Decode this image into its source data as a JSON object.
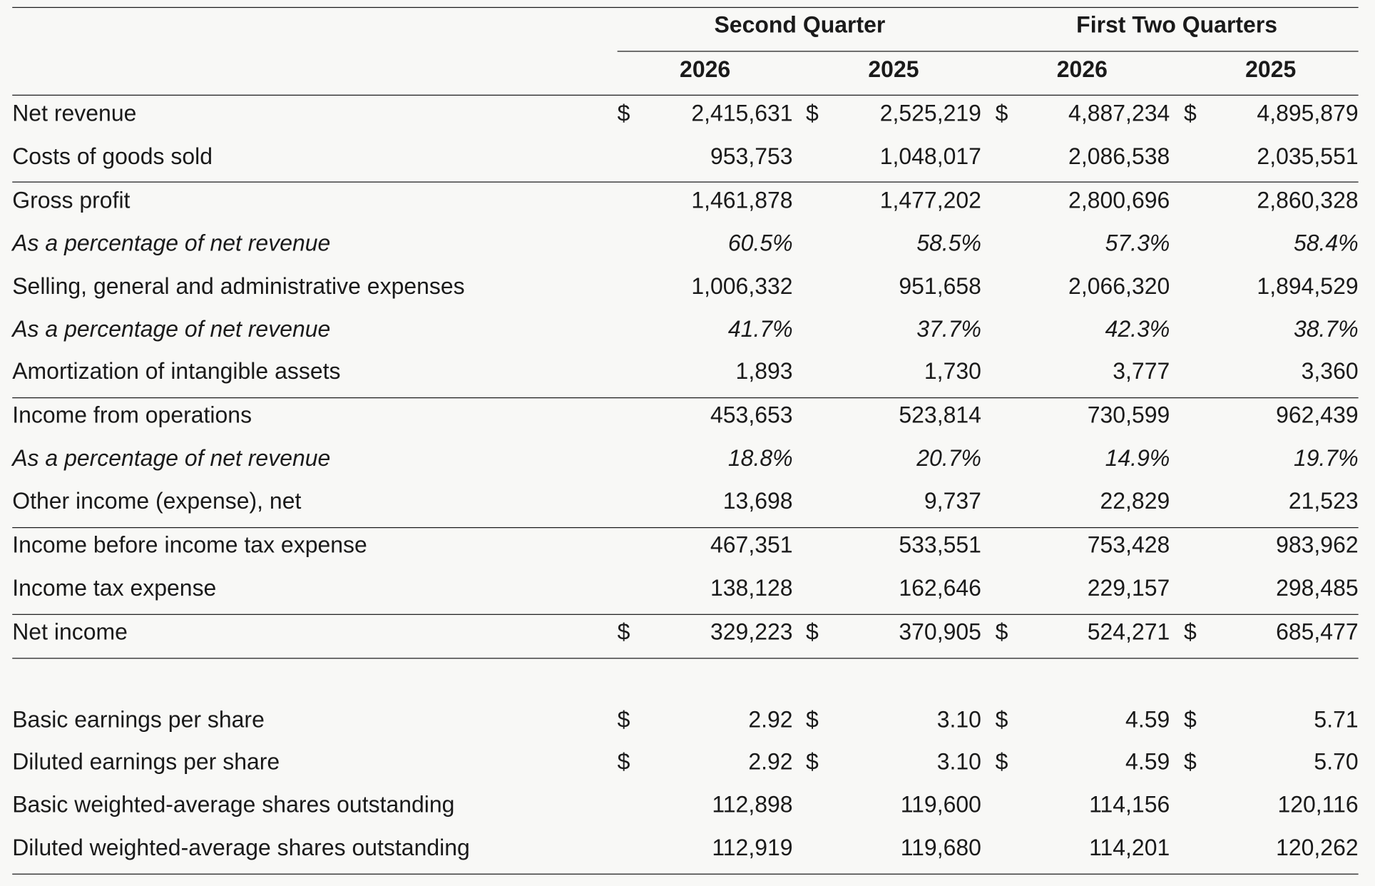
{
  "header": {
    "groups": [
      {
        "label": "Second Quarter",
        "years": [
          "2026",
          "2025"
        ]
      },
      {
        "label": "First Two Quarters",
        "years": [
          "2026",
          "2025"
        ]
      }
    ]
  },
  "currency_symbol": "$",
  "rows": [
    {
      "label": "Net revenue",
      "values": [
        "2,415,631",
        "2,525,219",
        "4,887,234",
        "4,895,879"
      ],
      "dollar": true,
      "italic": false
    },
    {
      "label": "Costs of goods sold",
      "values": [
        "953,753",
        "1,048,017",
        "2,086,538",
        "2,035,551"
      ],
      "dollar": false,
      "italic": false
    },
    {
      "label": "Gross profit",
      "values": [
        "1,461,878",
        "1,477,202",
        "2,800,696",
        "2,860,328"
      ],
      "dollar": false,
      "italic": false
    },
    {
      "label": "As a percentage of net revenue",
      "values": [
        "60.5%",
        "58.5%",
        "57.3%",
        "58.4%"
      ],
      "dollar": false,
      "italic": true
    },
    {
      "label": "Selling, general and administrative expenses",
      "values": [
        "1,006,332",
        "951,658",
        "2,066,320",
        "1,894,529"
      ],
      "dollar": false,
      "italic": false
    },
    {
      "label": "As a percentage of net revenue",
      "values": [
        "41.7%",
        "37.7%",
        "42.3%",
        "38.7%"
      ],
      "dollar": false,
      "italic": true
    },
    {
      "label": "Amortization of intangible assets",
      "values": [
        "1,893",
        "1,730",
        "3,777",
        "3,360"
      ],
      "dollar": false,
      "italic": false
    },
    {
      "label": "Income from operations",
      "values": [
        "453,653",
        "523,814",
        "730,599",
        "962,439"
      ],
      "dollar": false,
      "italic": false
    },
    {
      "label": "As a percentage of net revenue",
      "values": [
        "18.8%",
        "20.7%",
        "14.9%",
        "19.7%"
      ],
      "dollar": false,
      "italic": true
    },
    {
      "label": "Other income (expense), net",
      "values": [
        "13,698",
        "9,737",
        "22,829",
        "21,523"
      ],
      "dollar": false,
      "italic": false
    },
    {
      "label": "Income before income tax expense",
      "values": [
        "467,351",
        "533,551",
        "753,428",
        "983,962"
      ],
      "dollar": false,
      "italic": false
    },
    {
      "label": "Income tax expense",
      "values": [
        "138,128",
        "162,646",
        "229,157",
        "298,485"
      ],
      "dollar": false,
      "italic": false
    },
    {
      "label": "Net income",
      "values": [
        "329,223",
        "370,905",
        "524,271",
        "685,477"
      ],
      "dollar": true,
      "italic": false
    },
    {
      "label": "Basic earnings per share",
      "values": [
        "2.92",
        "3.10",
        "4.59",
        "5.71"
      ],
      "dollar": true,
      "italic": false
    },
    {
      "label": "Diluted earnings per share",
      "values": [
        "2.92",
        "3.10",
        "4.59",
        "5.70"
      ],
      "dollar": true,
      "italic": false
    },
    {
      "label": "Basic weighted-average shares outstanding",
      "values": [
        "112,898",
        "119,600",
        "114,156",
        "120,116"
      ],
      "dollar": false,
      "italic": false
    },
    {
      "label": "Diluted weighted-average shares outstanding",
      "values": [
        "112,919",
        "119,680",
        "114,201",
        "120,262"
      ],
      "dollar": false,
      "italic": false
    }
  ]
}
